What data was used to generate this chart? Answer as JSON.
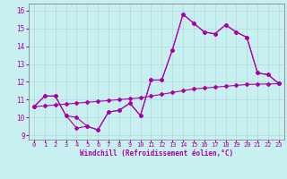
{
  "xlabel": "Windchill (Refroidissement éolien,°C)",
  "background_color": "#c8f0f0",
  "grid_color": "#b0d8d8",
  "line_color": "#aa00aa",
  "xlim": [
    -0.5,
    23.5
  ],
  "ylim": [
    8.75,
    16.4
  ],
  "yticks": [
    9,
    10,
    11,
    12,
    13,
    14,
    15,
    16
  ],
  "xticks": [
    0,
    1,
    2,
    3,
    4,
    5,
    6,
    7,
    8,
    9,
    10,
    11,
    12,
    13,
    14,
    15,
    16,
    17,
    18,
    19,
    20,
    21,
    22,
    23
  ],
  "series1": [
    10.6,
    11.2,
    11.2,
    10.1,
    10.0,
    9.5,
    9.3,
    10.3,
    10.4,
    10.8,
    10.1,
    12.1,
    12.1,
    13.8,
    15.8,
    15.3,
    14.8,
    14.7,
    15.2,
    14.8,
    14.5,
    12.5,
    12.4,
    11.9
  ],
  "series2": [
    10.6,
    11.2,
    11.2,
    10.1,
    9.4,
    9.5,
    9.3,
    10.3,
    10.4,
    10.8,
    10.1,
    12.1,
    12.1,
    13.8,
    15.8,
    15.3,
    14.8,
    14.7,
    15.2,
    14.8,
    14.5,
    12.5,
    12.4,
    11.9
  ],
  "series3": [
    10.6,
    10.65,
    10.7,
    10.75,
    10.8,
    10.85,
    10.9,
    10.95,
    11.0,
    11.05,
    11.1,
    11.2,
    11.3,
    11.4,
    11.5,
    11.6,
    11.65,
    11.7,
    11.75,
    11.8,
    11.85,
    11.87,
    11.88,
    11.9
  ]
}
